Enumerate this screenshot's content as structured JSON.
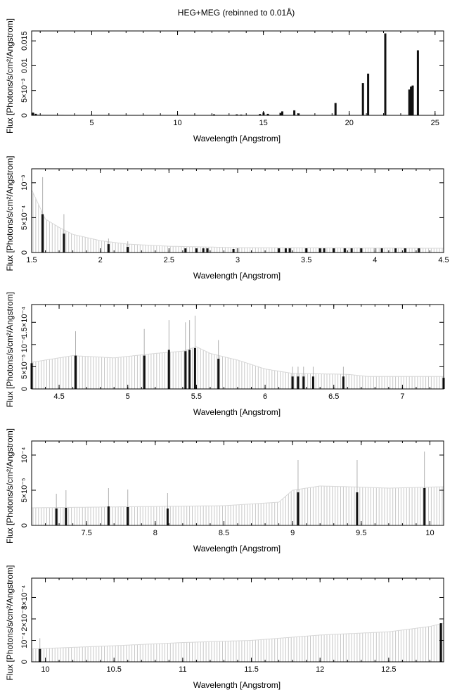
{
  "title": "HEG+MEG (rebinned to 0.01Å)",
  "chart_data": [
    {
      "type": "bar",
      "xlabel": "Wavelength [Angstrom]",
      "ylabel": "Flux [Photons/s/cm²/Angstrom]",
      "xlim": [
        1.5,
        25.5
      ],
      "ylim": [
        0,
        0.017
      ],
      "xticks": [
        {
          "v": 5,
          "t": "5"
        },
        {
          "v": 10,
          "t": "10"
        },
        {
          "v": 15,
          "t": "15"
        },
        {
          "v": 20,
          "t": "20"
        },
        {
          "v": 25,
          "t": "25"
        }
      ],
      "yticks": [
        {
          "v": 0,
          "t": "0"
        },
        {
          "v": 0.005,
          "t": "5×10⁻³"
        },
        {
          "v": 0.01,
          "t": "0.01"
        },
        {
          "v": 0.015,
          "t": "0.015"
        }
      ],
      "continuum": [
        [
          1.5,
          0.0004
        ],
        [
          2,
          0.00012
        ],
        [
          4,
          6e-05
        ],
        [
          10,
          4e-05
        ],
        [
          25.5,
          4e-05
        ]
      ],
      "lines": [
        [
          1.58,
          0.00055
        ],
        [
          1.74,
          0.0003
        ],
        [
          12.13,
          0.0002
        ],
        [
          13.45,
          0.0002
        ],
        [
          13.7,
          0.00015
        ],
        [
          14.8,
          0.00025
        ],
        [
          15.01,
          0.0006
        ],
        [
          15.26,
          0.0003
        ],
        [
          16.0,
          0.0005
        ],
        [
          16.1,
          0.0008
        ],
        [
          16.8,
          0.001
        ],
        [
          17.05,
          0.0004
        ],
        [
          19.2,
          0.0025
        ],
        [
          20.8,
          0.0065
        ],
        [
          21.1,
          0.0084
        ],
        [
          22.1,
          0.0165
        ],
        [
          23.5,
          0.0052
        ],
        [
          23.6,
          0.0058
        ],
        [
          23.7,
          0.006
        ],
        [
          24.0,
          0.0131
        ]
      ],
      "errors": []
    },
    {
      "type": "bar",
      "xlabel": "Wavelength [Angstrom]",
      "ylabel": "Flux [Photons/s/cm²/Angstrom]",
      "xlim": [
        1.5,
        4.5
      ],
      "ylim": [
        0,
        0.0012
      ],
      "xticks": [
        {
          "v": 1.5,
          "t": "1.5"
        },
        {
          "v": 2,
          "t": "2"
        },
        {
          "v": 2.5,
          "t": "2.5"
        },
        {
          "v": 3,
          "t": "3"
        },
        {
          "v": 3.5,
          "t": "3.5"
        },
        {
          "v": 4,
          "t": "4"
        },
        {
          "v": 4.5,
          "t": "4.5"
        }
      ],
      "yticks": [
        {
          "v": 0,
          "t": "0"
        },
        {
          "v": 0.0005,
          "t": "5×10⁻⁴"
        },
        {
          "v": 0.001,
          "t": "10⁻³"
        }
      ],
      "continuum": [
        [
          1.5,
          0.0009
        ],
        [
          1.6,
          0.00048
        ],
        [
          1.7,
          0.00036
        ],
        [
          1.8,
          0.00026
        ],
        [
          2.0,
          0.00017
        ],
        [
          2.2,
          0.00012
        ],
        [
          2.5,
          9e-05
        ],
        [
          3.0,
          7e-05
        ],
        [
          4.5,
          6e-05
        ]
      ],
      "lines": [
        [
          1.58,
          0.00055
        ],
        [
          1.735,
          0.00027
        ],
        [
          2.06,
          0.00012
        ],
        [
          2.2,
          8e-05
        ],
        [
          2.62,
          6e-05
        ],
        [
          2.7,
          6e-05
        ],
        [
          2.75,
          6e-05
        ],
        [
          2.78,
          6e-05
        ],
        [
          2.97,
          5e-05
        ],
        [
          3.3,
          6e-05
        ],
        [
          3.35,
          6e-05
        ],
        [
          3.38,
          6e-05
        ],
        [
          3.5,
          6e-05
        ],
        [
          3.6,
          6e-05
        ],
        [
          3.63,
          6e-05
        ],
        [
          3.7,
          6e-05
        ],
        [
          3.78,
          6e-05
        ],
        [
          3.83,
          6e-05
        ],
        [
          3.9,
          6e-05
        ],
        [
          4.05,
          6e-05
        ],
        [
          4.15,
          6e-05
        ],
        [
          4.22,
          6e-05
        ],
        [
          4.32,
          6e-05
        ]
      ],
      "errors": [
        [
          1.58,
          0.00108
        ],
        [
          1.735,
          0.00055
        ],
        [
          2.06,
          0.0002
        ],
        [
          2.2,
          0.00016
        ]
      ]
    },
    {
      "type": "bar",
      "xlabel": "Wavelength [Angstrom]",
      "ylabel": "Flux [Photons/s/cm²/Angstrom]",
      "xlim": [
        4.3,
        7.3
      ],
      "ylim": [
        0,
        0.00019
      ],
      "xticks": [
        {
          "v": 4.5,
          "t": "4.5"
        },
        {
          "v": 5,
          "t": "5"
        },
        {
          "v": 5.5,
          "t": "5.5"
        },
        {
          "v": 6,
          "t": "6"
        },
        {
          "v": 6.5,
          "t": "6.5"
        },
        {
          "v": 7,
          "t": "7"
        }
      ],
      "yticks": [
        {
          "v": 0,
          "t": "0"
        },
        {
          "v": 5e-05,
          "t": "5×10⁻⁵"
        },
        {
          "v": 0.0001,
          "t": "10⁻⁴"
        },
        {
          "v": 0.00015,
          "t": "1.5×10⁻⁴"
        }
      ],
      "continuum": [
        [
          4.3,
          6e-05
        ],
        [
          4.6,
          7.5e-05
        ],
        [
          4.9,
          7e-05
        ],
        [
          5.2,
          8e-05
        ],
        [
          5.4,
          8.5e-05
        ],
        [
          5.5,
          9.5e-05
        ],
        [
          5.6,
          8e-05
        ],
        [
          5.8,
          6.5e-05
        ],
        [
          6.0,
          4.5e-05
        ],
        [
          6.2,
          3.5e-05
        ],
        [
          6.6,
          3.3e-05
        ],
        [
          6.75,
          2.8e-05
        ],
        [
          7.3,
          2.8e-05
        ]
      ],
      "lines": [
        [
          4.3,
          5.8e-05
        ],
        [
          4.62,
          7.5e-05
        ],
        [
          5.12,
          7.5e-05
        ],
        [
          5.3,
          8.8e-05
        ],
        [
          5.42,
          8.5e-05
        ],
        [
          5.45,
          8.8e-05
        ],
        [
          5.49,
          9.2e-05
        ],
        [
          5.66,
          6.8e-05
        ],
        [
          6.2,
          2.8e-05
        ],
        [
          6.24,
          2.8e-05
        ],
        [
          6.28,
          2.8e-05
        ],
        [
          6.35,
          2.8e-05
        ],
        [
          6.57,
          2.8e-05
        ],
        [
          7.3,
          2.5e-05
        ]
      ],
      "errors": [
        [
          4.62,
          0.00013
        ],
        [
          5.12,
          0.000135
        ],
        [
          5.3,
          0.000155
        ],
        [
          5.42,
          0.00015
        ],
        [
          5.45,
          0.000155
        ],
        [
          5.49,
          0.000165
        ],
        [
          5.66,
          0.00011
        ],
        [
          6.2,
          5e-05
        ],
        [
          6.24,
          5e-05
        ],
        [
          6.28,
          5e-05
        ],
        [
          6.35,
          5e-05
        ],
        [
          6.57,
          5e-05
        ]
      ]
    },
    {
      "type": "bar",
      "xlabel": "Wavelength [Angstrom]",
      "ylabel": "Flux [Photons/s/cm²/Angstrom]",
      "xlim": [
        7.1,
        10.1
      ],
      "ylim": [
        0,
        0.00012
      ],
      "xticks": [
        {
          "v": 7.5,
          "t": "7.5"
        },
        {
          "v": 8,
          "t": "8"
        },
        {
          "v": 8.5,
          "t": "8.5"
        },
        {
          "v": 9,
          "t": "9"
        },
        {
          "v": 9.5,
          "t": "9.5"
        },
        {
          "v": 10,
          "t": "10"
        }
      ],
      "yticks": [
        {
          "v": 0,
          "t": "0"
        },
        {
          "v": 5e-05,
          "t": "5×10⁻⁵"
        },
        {
          "v": 0.0001,
          "t": "10⁻⁴"
        }
      ],
      "continuum": [
        [
          7.1,
          2.5e-05
        ],
        [
          8.5,
          2.8e-05
        ],
        [
          8.9,
          3.3e-05
        ],
        [
          9.0,
          5e-05
        ],
        [
          9.2,
          5.6e-05
        ],
        [
          9.4,
          5.5e-05
        ],
        [
          9.7,
          5.3e-05
        ],
        [
          10.1,
          5.5e-05
        ]
      ],
      "lines": [
        [
          7.28,
          2.4e-05
        ],
        [
          7.35,
          2.5e-05
        ],
        [
          7.66,
          2.7e-05
        ],
        [
          7.8,
          2.6e-05
        ],
        [
          8.09,
          2.4e-05
        ],
        [
          9.04,
          4.7e-05
        ],
        [
          9.47,
          4.7e-05
        ],
        [
          9.96,
          5.3e-05
        ]
      ],
      "errors": [
        [
          7.28,
          4.5e-05
        ],
        [
          7.35,
          5e-05
        ],
        [
          7.66,
          5.3e-05
        ],
        [
          7.8,
          5.1e-05
        ],
        [
          8.09,
          4.6e-05
        ],
        [
          9.04,
          9.3e-05
        ],
        [
          9.47,
          9.3e-05
        ],
        [
          9.96,
          0.000105
        ]
      ]
    },
    {
      "type": "bar",
      "xlabel": "Wavelength [Angstrom]",
      "ylabel": "Flux [Photons/s/cm²/Angstrom]",
      "xlim": [
        9.9,
        12.9
      ],
      "ylim": [
        0,
        0.00039
      ],
      "xticks": [
        {
          "v": 10,
          "t": "10"
        },
        {
          "v": 10.5,
          "t": "10.5"
        },
        {
          "v": 11,
          "t": "11"
        },
        {
          "v": 11.5,
          "t": "11.5"
        },
        {
          "v": 12,
          "t": "12"
        },
        {
          "v": 12.5,
          "t": "12.5"
        }
      ],
      "yticks": [
        {
          "v": 0,
          "t": "0"
        },
        {
          "v": 0.0001,
          "t": "10⁻⁴"
        },
        {
          "v": 0.0002,
          "t": "2×10⁻⁴"
        },
        {
          "v": 0.0003,
          "t": "3×10⁻⁴"
        }
      ],
      "continuum": [
        [
          9.9,
          6e-05
        ],
        [
          10.5,
          7.5e-05
        ],
        [
          11.0,
          9e-05
        ],
        [
          11.5,
          0.0001
        ],
        [
          12.0,
          0.000125
        ],
        [
          12.5,
          0.00014
        ],
        [
          12.8,
          0.000165
        ],
        [
          12.9,
          0.00018
        ]
      ],
      "lines": [
        [
          9.96,
          6e-05
        ],
        [
          12.88,
          0.00018
        ]
      ],
      "errors": [
        [
          9.96,
          0.00011
        ]
      ]
    }
  ]
}
